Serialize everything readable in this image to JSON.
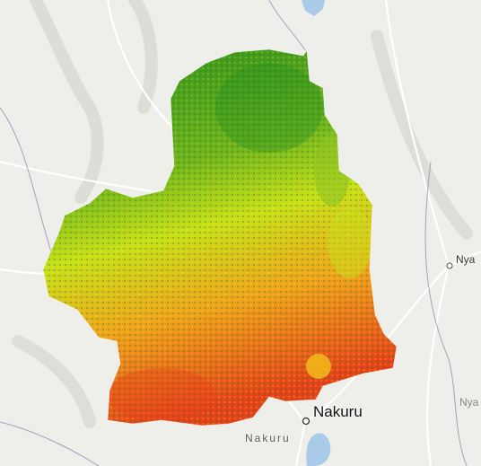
{
  "map": {
    "labels": {
      "city": "Nakuru",
      "region": "Nakuru",
      "town_right": "Nya",
      "town_right_faint": "Nya"
    },
    "colors": {
      "background": "#eeeeea",
      "terrain_ridge": "#d9d9d4",
      "road": "#ffffff",
      "boundary": "#8a7fa8",
      "water": "#a9cbe8",
      "ramp_high": "#1f8a1f",
      "ramp_mid": "#c7e21a",
      "ramp_low": "#f0a51d",
      "ramp_lowest": "#e5401a"
    }
  }
}
